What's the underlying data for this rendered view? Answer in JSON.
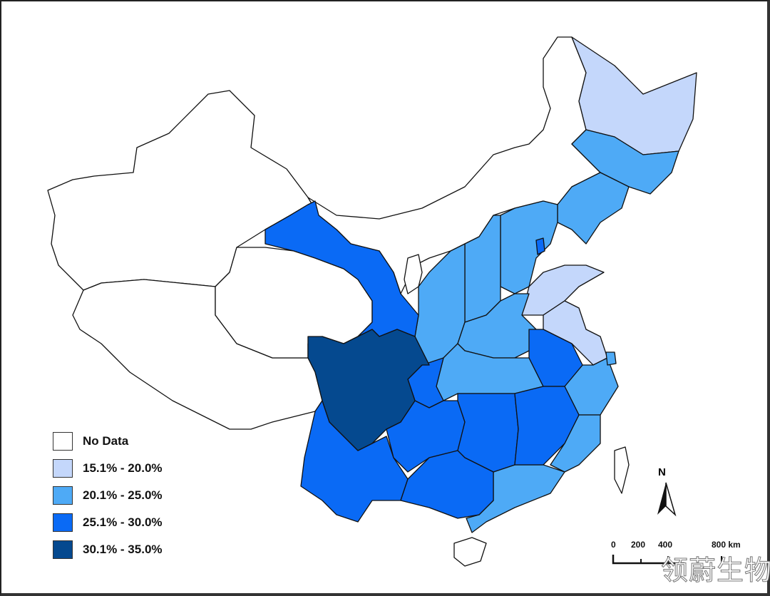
{
  "legend": {
    "items": [
      {
        "label": "No Data",
        "color": "#ffffff"
      },
      {
        "label": "15.1% - 20.0%",
        "color": "#c4d7fb"
      },
      {
        "label": "20.1% - 25.0%",
        "color": "#4eaaf6"
      },
      {
        "label": "25.1% - 30.0%",
        "color": "#0a6af5"
      },
      {
        "label": "30.1% - 35.0%",
        "color": "#05498f"
      }
    ]
  },
  "north_label": "N",
  "scale_bar": {
    "ticks": [
      "0",
      "200",
      "400",
      "800 km"
    ]
  },
  "watermark": "领蔚生物",
  "regions": [
    {
      "id": "xinjiang",
      "class": 0
    },
    {
      "id": "tibet",
      "class": 0
    },
    {
      "id": "qinghai",
      "class": 0
    },
    {
      "id": "inner-mongolia",
      "class": 0
    },
    {
      "id": "ningxia",
      "class": 0
    },
    {
      "id": "hainan",
      "class": 0
    },
    {
      "id": "taiwan",
      "class": 0
    },
    {
      "id": "heilongjiang",
      "class": 1
    },
    {
      "id": "shandong",
      "class": 1
    },
    {
      "id": "jiangsu",
      "class": 1
    },
    {
      "id": "beijing",
      "class": 1
    },
    {
      "id": "jilin",
      "class": 2
    },
    {
      "id": "liaoning",
      "class": 2
    },
    {
      "id": "hebei",
      "class": 2
    },
    {
      "id": "shanxi",
      "class": 2
    },
    {
      "id": "shaanxi",
      "class": 2
    },
    {
      "id": "henan",
      "class": 2
    },
    {
      "id": "hubei",
      "class": 2
    },
    {
      "id": "zhejiang",
      "class": 2
    },
    {
      "id": "fujian",
      "class": 2
    },
    {
      "id": "guangdong",
      "class": 2
    },
    {
      "id": "shanghai",
      "class": 2
    },
    {
      "id": "gansu",
      "class": 3
    },
    {
      "id": "tianjin",
      "class": 3
    },
    {
      "id": "anhui",
      "class": 3
    },
    {
      "id": "chongqing",
      "class": 3
    },
    {
      "id": "yunnan",
      "class": 3
    },
    {
      "id": "guizhou",
      "class": 3
    },
    {
      "id": "hunan",
      "class": 3
    },
    {
      "id": "jiangxi",
      "class": 3
    },
    {
      "id": "guangxi",
      "class": 3
    },
    {
      "id": "sichuan",
      "class": 4
    }
  ]
}
